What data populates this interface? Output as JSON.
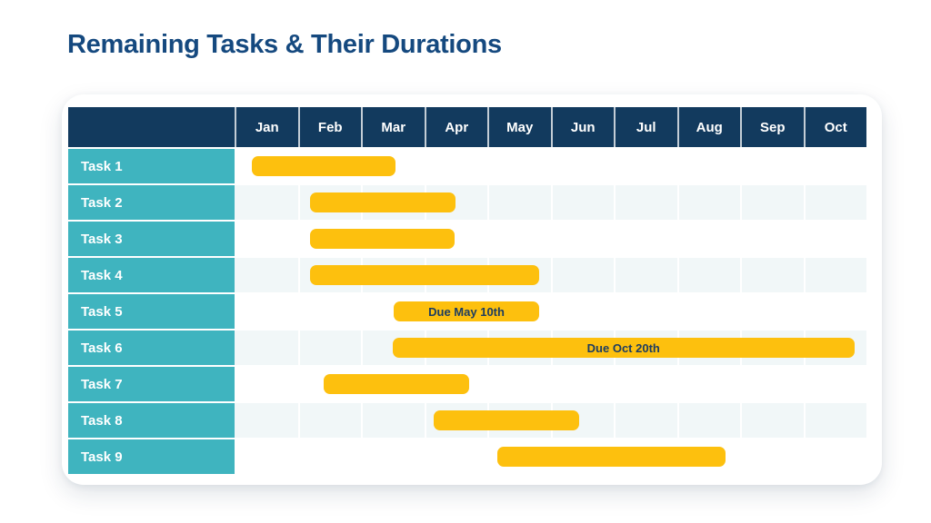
{
  "page": {
    "title": "Remaining Tasks & Their Durations"
  },
  "colors": {
    "title_text": "#15497F",
    "header_bg": "#123A5E",
    "header_text": "#FFFFFF",
    "task_label_bg": "#3FB4BF",
    "task_label_text": "#FFFFFF",
    "bar_fill": "#FDC00E",
    "bar_label_text": "#1E3D60",
    "row_alt_bg": "#F1F7F8",
    "row_bg": "#FFFFFF",
    "card_bg": "#FFFFFF"
  },
  "chart_data": {
    "type": "bar",
    "subtype": "gantt",
    "title": "Remaining Tasks & Their Durations",
    "legend": "none",
    "grid": "vertical month separators on alternating rows",
    "x_axis": {
      "unit": "months",
      "categories": [
        "Jan",
        "Feb",
        "Mar",
        "Apr",
        "May",
        "Jun",
        "Jul",
        "Aug",
        "Sep",
        "Oct"
      ],
      "range_months": [
        0,
        10
      ]
    },
    "tasks": [
      {
        "label": "Task 1",
        "start_month": 0.27,
        "end_month": 2.55,
        "bar_label": ""
      },
      {
        "label": "Task 2",
        "start_month": 1.19,
        "end_month": 3.5,
        "bar_label": ""
      },
      {
        "label": "Task 3",
        "start_month": 1.19,
        "end_month": 3.48,
        "bar_label": ""
      },
      {
        "label": "Task 4",
        "start_month": 1.19,
        "end_month": 4.82,
        "bar_label": ""
      },
      {
        "label": "Task 5",
        "start_month": 2.52,
        "end_month": 4.82,
        "bar_label": "Due May 10th"
      },
      {
        "label": "Task 6",
        "start_month": 2.5,
        "end_month": 9.81,
        "bar_label": "Due Oct 20th"
      },
      {
        "label": "Task 7",
        "start_month": 1.41,
        "end_month": 3.71,
        "bar_label": ""
      },
      {
        "label": "Task 8",
        "start_month": 3.15,
        "end_month": 5.45,
        "bar_label": ""
      },
      {
        "label": "Task 9",
        "start_month": 4.16,
        "end_month": 7.77,
        "bar_label": ""
      }
    ]
  }
}
